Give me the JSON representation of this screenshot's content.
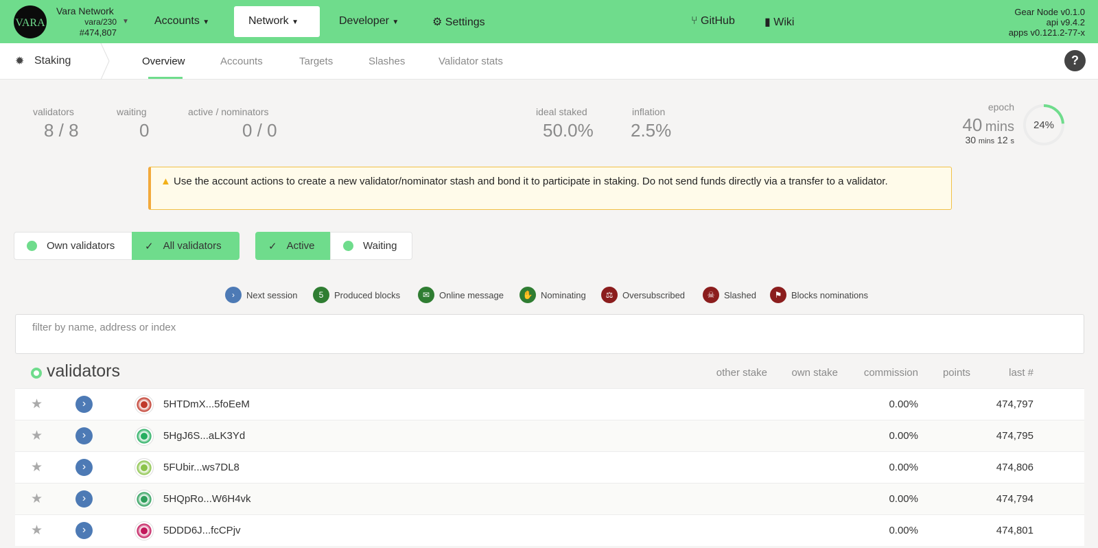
{
  "header": {
    "network_name": "Vara Network",
    "chain": "vara/230",
    "block": "#474,807",
    "menu": [
      "Accounts",
      "Network",
      "Developer",
      "Settings"
    ],
    "links": [
      "GitHub",
      "Wiki"
    ],
    "versions": [
      "Gear Node v0.1.0",
      "api v9.4.2",
      "apps v0.121.2-77-x"
    ]
  },
  "tabs": {
    "section": "Staking",
    "items": [
      "Overview",
      "Accounts",
      "Targets",
      "Slashes",
      "Validator stats"
    ]
  },
  "summary": {
    "items": [
      {
        "label": "validators",
        "value": "8 / 8"
      },
      {
        "label": "waiting",
        "value": "0"
      },
      {
        "label": "active / nominators",
        "value": "0 / 0"
      },
      {
        "label": "ideal staked",
        "value": "50.0%"
      },
      {
        "label": "inflation",
        "value": "2.5%"
      }
    ],
    "epoch": {
      "label": "epoch",
      "value": "40",
      "unit": "mins",
      "sub_mins": "30",
      "sub_mins_unit": "mins",
      "sub_secs": "12",
      "sub_secs_unit": "s",
      "percent": {
        "value": 24,
        "label": "24%"
      }
    }
  },
  "notice": "Use the account actions to create a new validator/nominator stash and bond it to participate in staking. Do not send funds directly via a transfer to a validator.",
  "toggles": {
    "owner": [
      "Own validators",
      "All validators"
    ],
    "state": [
      "Active",
      "Waiting"
    ]
  },
  "legend": [
    {
      "label": "Next session"
    },
    {
      "icon_text": "5",
      "label": "Produced blocks"
    },
    {
      "label": "Online message"
    },
    {
      "label": "Nominating"
    },
    {
      "label": "Oversubscribed"
    },
    {
      "label": "Slashed"
    },
    {
      "label": "Blocks nominations"
    }
  ],
  "filter_placeholder": "filter by name, address or index",
  "table": {
    "title": "validators",
    "columns": [
      "other stake",
      "own stake",
      "commission",
      "points",
      "last #"
    ],
    "rows": [
      {
        "address": "5HTDmX...5foEeM",
        "commission": "0.00%",
        "last": "474,797"
      },
      {
        "address": "5HgJ6S...aLK3Yd",
        "commission": "0.00%",
        "last": "474,795"
      },
      {
        "address": "5FUbir...ws7DL8",
        "commission": "0.00%",
        "last": "474,806"
      },
      {
        "address": "5HQpRo...W6H4vk",
        "commission": "0.00%",
        "last": "474,794"
      },
      {
        "address": "5DDD6J...fcCPjv",
        "commission": "0.00%",
        "last": "474,801"
      }
    ]
  }
}
